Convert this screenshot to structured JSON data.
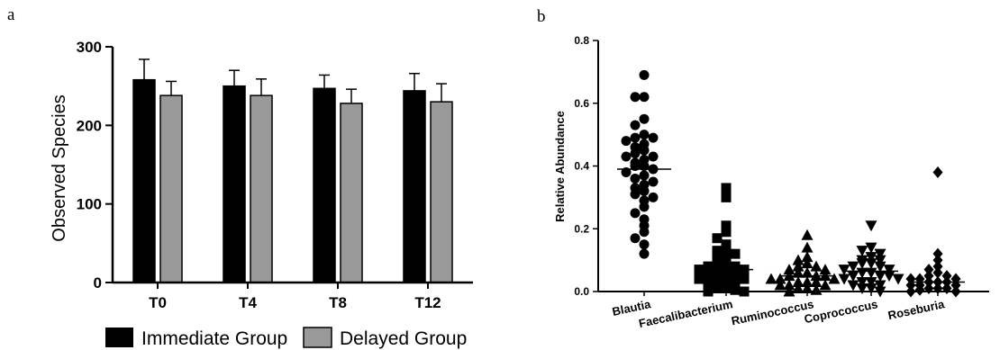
{
  "panel_labels": {
    "a": "a",
    "b": "b"
  },
  "chart_data": [
    {
      "type": "bar",
      "xlabel": "",
      "ylabel": "Observed Species",
      "ylim": [
        0,
        300
      ],
      "yticks": [
        0,
        100,
        200,
        300
      ],
      "categories": [
        "T0",
        "T4",
        "T8",
        "T12"
      ],
      "series": [
        {
          "name": "Immediate Group",
          "color": "#000000",
          "values": [
            258,
            250,
            247,
            244
          ],
          "errors": [
            26,
            20,
            17,
            22
          ]
        },
        {
          "name": "Delayed Group",
          "color": "#999999",
          "values": [
            238,
            238,
            228,
            230
          ],
          "errors": [
            18,
            21,
            18,
            23
          ]
        }
      ],
      "legend": "bottom",
      "grid": false
    },
    {
      "type": "scatter",
      "xlabel": "",
      "ylabel": "Relative Abundance",
      "ylim": [
        0,
        0.8
      ],
      "yticks": [
        "0.0",
        "0.2",
        "0.4",
        "0.6",
        "0.8"
      ],
      "categories": [
        "Blautia",
        "Faecalibacterium",
        "Ruminococcus",
        "Coprococcus",
        "Roseburia"
      ],
      "means": [
        0.39,
        0.07,
        0.05,
        0.065,
        0.03
      ],
      "markers": [
        "circle",
        "square",
        "triangle-up",
        "triangle-down",
        "diamond"
      ],
      "color": "#000000",
      "grid": false,
      "series": [
        {
          "name": "Blautia",
          "values": [
            0.69,
            0.62,
            0.62,
            0.55,
            0.53,
            0.5,
            0.49,
            0.49,
            0.48,
            0.47,
            0.46,
            0.45,
            0.44,
            0.43,
            0.43,
            0.42,
            0.41,
            0.4,
            0.4,
            0.39,
            0.38,
            0.37,
            0.36,
            0.35,
            0.34,
            0.33,
            0.32,
            0.31,
            0.3,
            0.29,
            0.27,
            0.25,
            0.23,
            0.21,
            0.19,
            0.17,
            0.15,
            0.12
          ]
        },
        {
          "name": "Faecalibacterium",
          "values": [
            0.33,
            0.3,
            0.21,
            0.19,
            0.17,
            0.15,
            0.14,
            0.13,
            0.12,
            0.11,
            0.1,
            0.09,
            0.09,
            0.08,
            0.08,
            0.07,
            0.07,
            0.06,
            0.06,
            0.05,
            0.05,
            0.04,
            0.04,
            0.03,
            0.03,
            0.02,
            0.02,
            0.01,
            0.01,
            0.005,
            0.0,
            0.0
          ]
        },
        {
          "name": "Ruminococcus",
          "values": [
            0.18,
            0.14,
            0.11,
            0.1,
            0.09,
            0.08,
            0.08,
            0.07,
            0.07,
            0.06,
            0.06,
            0.05,
            0.05,
            0.05,
            0.04,
            0.04,
            0.04,
            0.03,
            0.03,
            0.03,
            0.02,
            0.02,
            0.02,
            0.01,
            0.01,
            0.005,
            0.0
          ]
        },
        {
          "name": "Coprococcus",
          "values": [
            0.21,
            0.14,
            0.13,
            0.12,
            0.11,
            0.1,
            0.1,
            0.09,
            0.09,
            0.08,
            0.08,
            0.07,
            0.07,
            0.06,
            0.06,
            0.05,
            0.05,
            0.05,
            0.04,
            0.04,
            0.03,
            0.03,
            0.02,
            0.02,
            0.01,
            0.01,
            0.0
          ]
        },
        {
          "name": "Roseburia",
          "values": [
            0.38,
            0.12,
            0.1,
            0.08,
            0.07,
            0.06,
            0.05,
            0.05,
            0.04,
            0.04,
            0.04,
            0.03,
            0.03,
            0.03,
            0.02,
            0.02,
            0.02,
            0.01,
            0.01,
            0.01,
            0.005,
            0.0,
            0.0
          ]
        }
      ]
    }
  ]
}
